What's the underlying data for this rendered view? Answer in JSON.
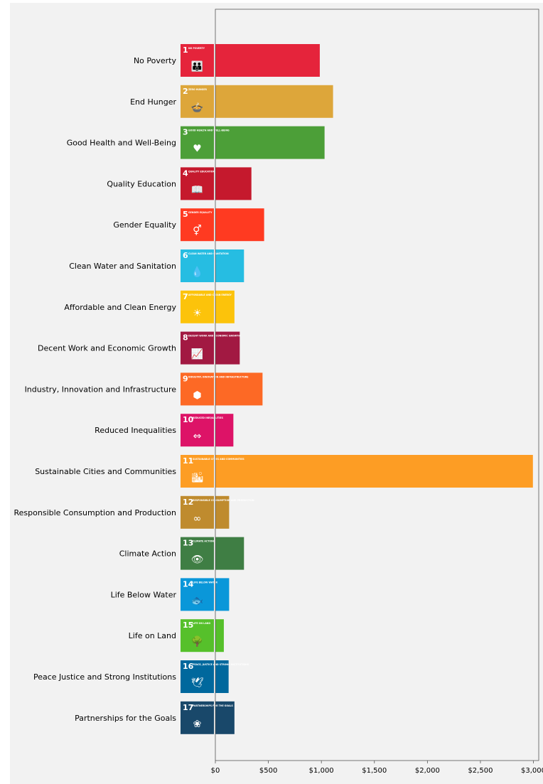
{
  "chart_data": {
    "type": "bar",
    "orientation": "horizontal",
    "categories": [
      "No Poverty",
      "End Hunger",
      "Good Health and Well-Being",
      "Quality Education",
      "Gender Equality",
      "Clean Water and Sanitation",
      "Affordable and Clean Energy",
      "Decent Work and Economic Growth",
      "Industry, Innovation and Infrastructure",
      "Reduced Inequalities",
      "Sustainable Cities and Communities",
      "Responsible Consumption and Production",
      "Climate Action",
      "Life Below Water",
      "Life on Land",
      "Peace Justice and Strong Institutions",
      "Partnerships for the Goals"
    ],
    "values": [
      985,
      1110,
      1030,
      340,
      460,
      270,
      180,
      230,
      445,
      170,
      2995,
      130,
      270,
      130,
      80,
      125,
      180
    ],
    "colors": [
      "#E5243B",
      "#DDA63A",
      "#4C9F38",
      "#C5192D",
      "#FF3A21",
      "#26BDE2",
      "#FCC30B",
      "#A21942",
      "#FD6925",
      "#DD1367",
      "#FD9D24",
      "#BF8B2E",
      "#3F7E44",
      "#0A97D9",
      "#56C02B",
      "#00689D",
      "#19486A"
    ],
    "goal_icons": [
      {
        "num": "1",
        "text": "NO POVERTY",
        "glyph": "👪"
      },
      {
        "num": "2",
        "text": "ZERO HUNGER",
        "glyph": "🍲"
      },
      {
        "num": "3",
        "text": "GOOD HEALTH AND WELL-BEING",
        "glyph": "♥"
      },
      {
        "num": "4",
        "text": "QUALITY EDUCATION",
        "glyph": "📖"
      },
      {
        "num": "5",
        "text": "GENDER EQUALITY",
        "glyph": "⚥"
      },
      {
        "num": "6",
        "text": "CLEAN WATER AND SANITATION",
        "glyph": "💧"
      },
      {
        "num": "7",
        "text": "AFFORDABLE AND CLEAN ENERGY",
        "glyph": "☀"
      },
      {
        "num": "8",
        "text": "DECENT WORK AND ECONOMIC GROWTH",
        "glyph": "📈"
      },
      {
        "num": "9",
        "text": "INDUSTRY, INNOVATION AND INFRASTRUCTURE",
        "glyph": "⬢"
      },
      {
        "num": "10",
        "text": "REDUCED INEQUALITIES",
        "glyph": "⇔"
      },
      {
        "num": "11",
        "text": "SUSTAINABLE CITIES AND COMMUNITIES",
        "glyph": "🏙"
      },
      {
        "num": "12",
        "text": "RESPONSIBLE CONSUMPTION AND PRODUCTION",
        "glyph": "∞"
      },
      {
        "num": "13",
        "text": "CLIMATE ACTION",
        "glyph": "👁"
      },
      {
        "num": "14",
        "text": "LIFE BELOW WATER",
        "glyph": "🐟"
      },
      {
        "num": "15",
        "text": "LIFE ON LAND",
        "glyph": "🌳"
      },
      {
        "num": "16",
        "text": "PEACE, JUSTICE AND STRONG INSTITUTIONS",
        "glyph": "🕊"
      },
      {
        "num": "17",
        "text": "PARTNERSHIPS FOR THE GOALS",
        "glyph": "❀"
      }
    ],
    "x_ticks": [
      0,
      500,
      1000,
      1500,
      2000,
      2500,
      3000
    ],
    "x_tick_labels": [
      "$0",
      "$500",
      "$1,000",
      "$1,500",
      "$2,000",
      "$2,500",
      "$3,000"
    ],
    "xlim": [
      0,
      3050
    ],
    "grid": false,
    "background": "#F2F2F2"
  }
}
